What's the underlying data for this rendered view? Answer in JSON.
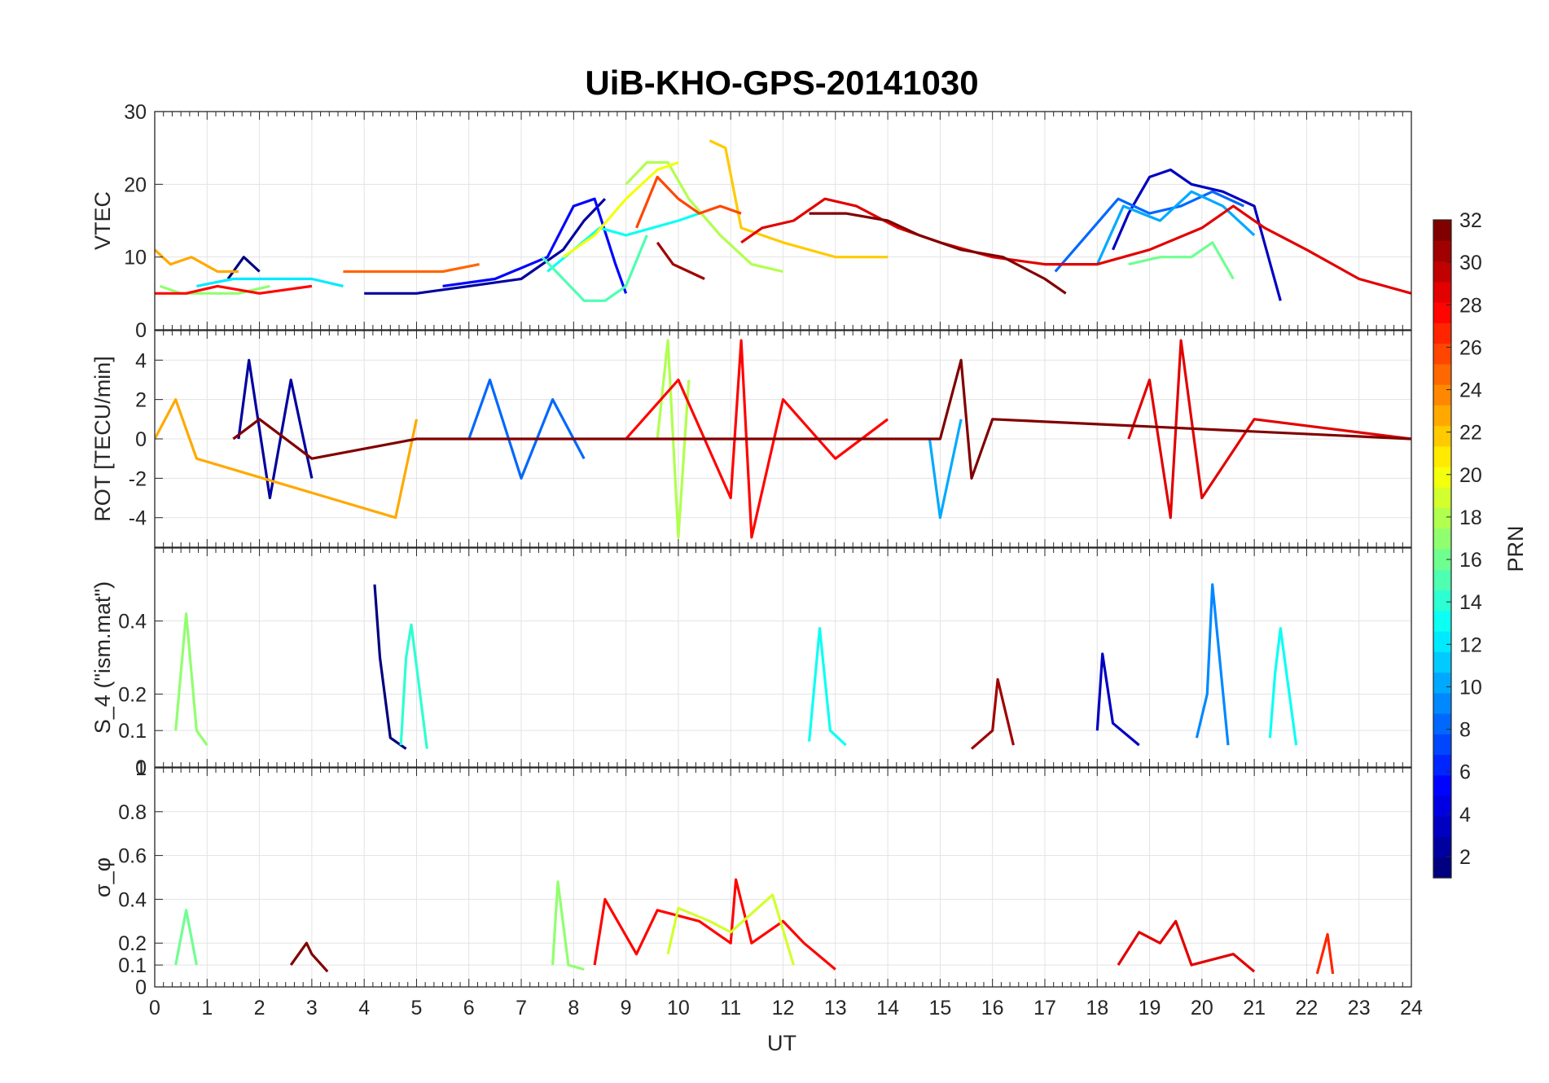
{
  "figure": {
    "title": "UiB-KHO-GPS-20141030",
    "xlabel": "UT",
    "colorbar": {
      "label": "PRN",
      "ticks": [
        "2",
        "4",
        "6",
        "8",
        "10",
        "12",
        "14",
        "16",
        "18",
        "20",
        "22",
        "24",
        "26",
        "28",
        "30",
        "32"
      ],
      "range": [
        1,
        32
      ]
    }
  },
  "chart_data": [
    {
      "type": "line",
      "name": "vtec-panel",
      "ylabel": "VTEC",
      "xlim": [
        0,
        24
      ],
      "ylim": [
        0,
        30
      ],
      "yticks": [
        "0",
        "10",
        "20",
        "30"
      ],
      "xticks": [
        "0",
        "1",
        "2",
        "3",
        "4",
        "5",
        "6",
        "7",
        "8",
        "9",
        "10",
        "11",
        "12",
        "13",
        "14",
        "15",
        "16",
        "17",
        "18",
        "19",
        "20",
        "21",
        "22",
        "23",
        "24"
      ],
      "grid": true,
      "series": [
        {
          "prn": 1,
          "x": [
            1.4,
            1.7,
            2.0
          ],
          "y": [
            7,
            10,
            8
          ]
        },
        {
          "prn": 2,
          "x": [
            4.0,
            5.0,
            6.0,
            7.0,
            7.8,
            8.2,
            8.6
          ],
          "y": [
            5,
            5,
            6,
            7,
            11,
            15,
            18
          ]
        },
        {
          "prn": 3,
          "x": [
            18.3,
            18.6,
            19.0,
            19.4,
            19.8,
            20.4,
            21.0,
            21.5
          ],
          "y": [
            11,
            16,
            21,
            22,
            20,
            19,
            17,
            4
          ]
        },
        {
          "prn": 5,
          "x": [
            5.5,
            6.5,
            7.5,
            8.0,
            8.4,
            8.8,
            9.0
          ],
          "y": [
            6,
            7,
            10,
            17,
            18,
            9,
            5
          ]
        },
        {
          "prn": 8,
          "x": [
            17.2,
            17.8,
            18.4,
            19.0,
            19.6,
            20.2,
            20.8
          ],
          "y": [
            8,
            13,
            18,
            16,
            17,
            19,
            17
          ]
        },
        {
          "prn": 10,
          "x": [
            18.0,
            18.5,
            19.2,
            19.8,
            20.4,
            21.0
          ],
          "y": [
            9,
            17,
            15,
            19,
            17,
            13
          ]
        },
        {
          "prn": 12,
          "x": [
            0.8,
            1.5,
            2.2,
            3.0,
            3.6
          ],
          "y": [
            6,
            7,
            7,
            7,
            6
          ]
        },
        {
          "prn": 13,
          "x": [
            7.5,
            8.0,
            8.5,
            9.0,
            9.5,
            10.0,
            10.4
          ],
          "y": [
            8,
            11,
            14,
            13,
            14,
            15,
            16
          ]
        },
        {
          "prn": 15,
          "x": [
            7.4,
            7.8,
            8.2,
            8.6,
            9.0,
            9.4
          ],
          "y": [
            10,
            7,
            4,
            4,
            6,
            13
          ]
        },
        {
          "prn": 16,
          "x": [
            18.6,
            19.2,
            19.8,
            20.2,
            20.6
          ],
          "y": [
            9,
            10,
            10,
            12,
            7
          ]
        },
        {
          "prn": 17,
          "x": [
            0.1,
            0.5,
            1.0,
            1.6,
            2.2
          ],
          "y": [
            6,
            5,
            5,
            5,
            6
          ]
        },
        {
          "prn": 18,
          "x": [
            9.0,
            9.4,
            9.8,
            10.2,
            10.8,
            11.4,
            12.0
          ],
          "y": [
            20,
            23,
            23,
            18,
            13,
            9,
            8
          ]
        },
        {
          "prn": 20,
          "x": [
            7.8,
            8.4,
            9.0,
            9.6,
            10.0
          ],
          "y": [
            10,
            13,
            18,
            22,
            23
          ]
        },
        {
          "prn": 22,
          "x": [
            10.6,
            10.9,
            11.2,
            12.0,
            13.0,
            14.0
          ],
          "y": [
            26,
            25,
            14,
            12,
            10,
            10
          ]
        },
        {
          "prn": 23,
          "x": [
            0.0,
            0.3,
            0.7,
            1.2,
            1.6
          ],
          "y": [
            11,
            9,
            10,
            8,
            8
          ]
        },
        {
          "prn": 25,
          "x": [
            3.6,
            4.5,
            5.5,
            6.2
          ],
          "y": [
            8,
            8,
            8,
            9
          ]
        },
        {
          "prn": 26,
          "x": [
            9.2,
            9.6,
            10.0,
            10.4,
            10.8,
            11.2
          ],
          "y": [
            14,
            21,
            18,
            16,
            17,
            16
          ]
        },
        {
          "prn": 28,
          "x": [
            0.0,
            0.6,
            1.2,
            2.0,
            3.0
          ],
          "y": [
            5,
            5,
            6,
            5,
            6
          ]
        },
        {
          "prn": 29,
          "x": [
            11.2,
            11.6,
            12.2,
            12.8,
            13.4,
            14.2,
            15.0,
            16.0,
            17.0,
            18.0,
            19.0,
            20.0,
            20.6,
            21.2,
            22.0,
            23.0,
            24.0
          ],
          "y": [
            12,
            14,
            15,
            18,
            17,
            14,
            12,
            10,
            9,
            9,
            11,
            14,
            17,
            14,
            11,
            7,
            5
          ]
        },
        {
          "prn": 31,
          "x": [
            9.6,
            9.9,
            10.2,
            10.5
          ],
          "y": [
            12,
            9,
            8,
            7
          ]
        },
        {
          "prn": 32,
          "x": [
            12.5,
            13.2,
            14.0,
            14.6,
            15.4,
            16.2,
            17.0,
            17.4
          ],
          "y": [
            16,
            16,
            15,
            13,
            11,
            10,
            7,
            5
          ]
        }
      ]
    },
    {
      "type": "line",
      "name": "rot-panel",
      "ylabel": "ROT [TECU/min]",
      "xlim": [
        0,
        24
      ],
      "ylim": [
        -5.5,
        5.5
      ],
      "yticks": [
        "-4",
        "-2",
        "0",
        "2",
        "4"
      ],
      "grid": true,
      "series": [
        {
          "prn": 2,
          "x": [
            1.6,
            1.8,
            2.2,
            2.6,
            3.0
          ],
          "y": [
            0,
            4,
            -3,
            3,
            -2
          ]
        },
        {
          "prn": 8,
          "x": [
            6.0,
            6.4,
            7.0,
            7.6,
            8.2
          ],
          "y": [
            0,
            3,
            -2,
            2,
            -1
          ]
        },
        {
          "prn": 10,
          "x": [
            14.8,
            15.0,
            15.4
          ],
          "y": [
            0,
            -4,
            1
          ]
        },
        {
          "prn": 18,
          "x": [
            9.6,
            9.8,
            10.0,
            10.2
          ],
          "y": [
            0,
            5,
            -5,
            3
          ]
        },
        {
          "prn": 23,
          "x": [
            0.0,
            0.4,
            0.8,
            4.6,
            5.0
          ],
          "y": [
            0,
            2,
            -1,
            -4,
            1
          ]
        },
        {
          "prn": 28,
          "x": [
            9.0,
            10.0,
            11.0,
            11.2,
            11.4,
            12.0,
            13.0,
            14.0
          ],
          "y": [
            0,
            3,
            -3,
            5,
            -5,
            2,
            -1,
            1
          ]
        },
        {
          "prn": 29,
          "x": [
            18.6,
            19.0,
            19.4,
            19.6,
            20.0,
            21.0,
            24.0
          ],
          "y": [
            0,
            3,
            -4,
            5,
            -3,
            1,
            0
          ]
        },
        {
          "prn": 32,
          "x": [
            1.5,
            2.0,
            3.0,
            5.0,
            15.0,
            15.4,
            15.6,
            16.0,
            24.0
          ],
          "y": [
            0,
            1,
            -1,
            0,
            0,
            4,
            -2,
            1,
            0
          ]
        }
      ]
    },
    {
      "type": "line",
      "name": "s4-panel",
      "ylabel": "S_4 (\"ism.mat\")",
      "xlim": [
        0,
        24
      ],
      "ylim": [
        0,
        0.6
      ],
      "yticks": [
        "0",
        "0.1",
        "0.2",
        "0.4"
      ],
      "grid": true,
      "series": [
        {
          "prn": 1,
          "x": [
            4.2,
            4.3,
            4.5,
            4.8
          ],
          "y": [
            0.5,
            0.3,
            0.08,
            0.05
          ]
        },
        {
          "prn": 3,
          "x": [
            18.0,
            18.1,
            18.3,
            18.8
          ],
          "y": [
            0.1,
            0.31,
            0.12,
            0.06
          ]
        },
        {
          "prn": 9,
          "x": [
            19.9,
            20.1,
            20.2,
            20.5
          ],
          "y": [
            0.08,
            0.2,
            0.5,
            0.06
          ]
        },
        {
          "prn": 14,
          "x": [
            4.7,
            4.8,
            4.9,
            5.2
          ],
          "y": [
            0.06,
            0.3,
            0.39,
            0.05
          ]
        },
        {
          "prn": 13,
          "x": [
            12.5,
            12.7,
            12.9,
            13.2
          ],
          "y": [
            0.07,
            0.38,
            0.1,
            0.06
          ]
        },
        {
          "prn": 13,
          "x": [
            21.3,
            21.4,
            21.5,
            21.8
          ],
          "y": [
            0.08,
            0.26,
            0.38,
            0.06
          ]
        },
        {
          "prn": 17,
          "x": [
            0.4,
            0.6,
            0.8,
            1.0
          ],
          "y": [
            0.1,
            0.42,
            0.1,
            0.06
          ]
        },
        {
          "prn": 31,
          "x": [
            15.6,
            16.0,
            16.1,
            16.4
          ],
          "y": [
            0.05,
            0.1,
            0.24,
            0.06
          ]
        }
      ]
    },
    {
      "type": "line",
      "name": "sigma-phi-panel",
      "ylabel": "σ_φ",
      "xlim": [
        0,
        24
      ],
      "ylim": [
        0,
        1
      ],
      "yticks": [
        "0",
        "0.1",
        "0.2",
        "0.4",
        "0.6",
        "0.8",
        "1"
      ],
      "grid": true,
      "series": [
        {
          "prn": 17,
          "x": [
            7.6,
            7.7,
            7.9,
            8.2
          ],
          "y": [
            0.1,
            0.48,
            0.1,
            0.08
          ]
        },
        {
          "prn": 28,
          "x": [
            8.4,
            8.6,
            9.2,
            9.6,
            10.4,
            11.0,
            11.1,
            11.4,
            12.0,
            12.4,
            13.0
          ],
          "y": [
            0.1,
            0.4,
            0.15,
            0.35,
            0.3,
            0.2,
            0.49,
            0.2,
            0.3,
            0.2,
            0.08
          ]
        },
        {
          "prn": 19,
          "x": [
            9.8,
            10.0,
            10.6,
            11.0,
            11.8,
            12.2
          ],
          "y": [
            0.15,
            0.36,
            0.3,
            0.25,
            0.42,
            0.1
          ]
        },
        {
          "prn": 29,
          "x": [
            18.4,
            18.8,
            19.2,
            19.5,
            19.8,
            20.6,
            21.0
          ],
          "y": [
            0.1,
            0.25,
            0.2,
            0.3,
            0.1,
            0.15,
            0.07
          ]
        },
        {
          "prn": 32,
          "x": [
            2.6,
            2.9,
            3.0,
            3.3
          ],
          "y": [
            0.1,
            0.2,
            0.15,
            0.07
          ]
        },
        {
          "prn": 27,
          "x": [
            22.2,
            22.4,
            22.5
          ],
          "y": [
            0.06,
            0.24,
            0.06
          ]
        },
        {
          "prn": 16,
          "x": [
            0.4,
            0.6,
            0.8
          ],
          "y": [
            0.1,
            0.35,
            0.1
          ]
        }
      ]
    }
  ]
}
